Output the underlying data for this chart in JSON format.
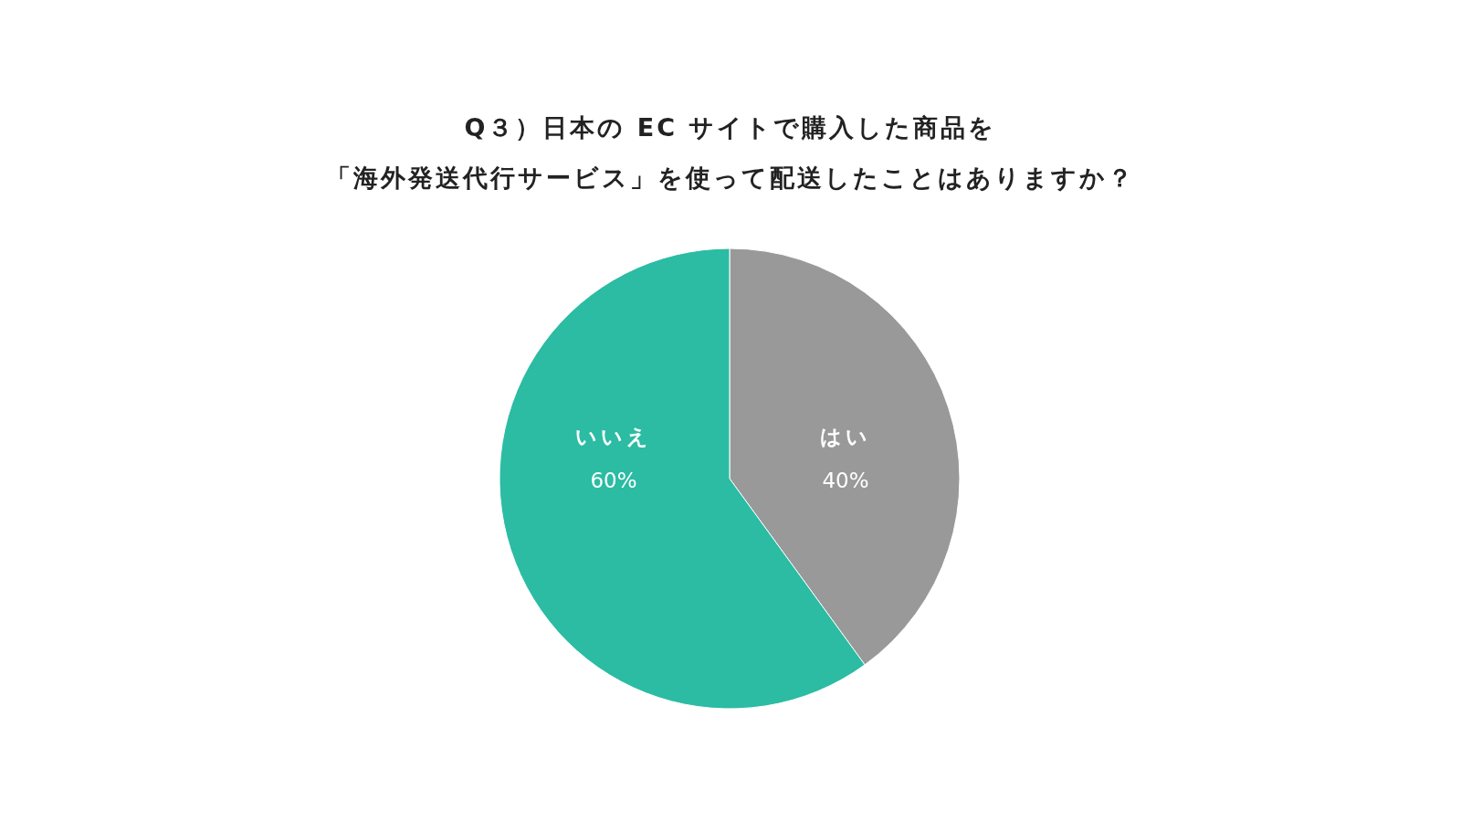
{
  "chart_data": {
    "type": "pie",
    "title": "Q３）日本の EC サイトで購入した商品を",
    "subtitle": "「海外発送代行サービス」を使って配送したことはありますか？",
    "categories": [
      "はい",
      "いいえ"
    ],
    "values": [
      40,
      60
    ],
    "colors": [
      "#999999",
      "#2bbca3"
    ],
    "value_labels": [
      "40%",
      "60%"
    ]
  }
}
